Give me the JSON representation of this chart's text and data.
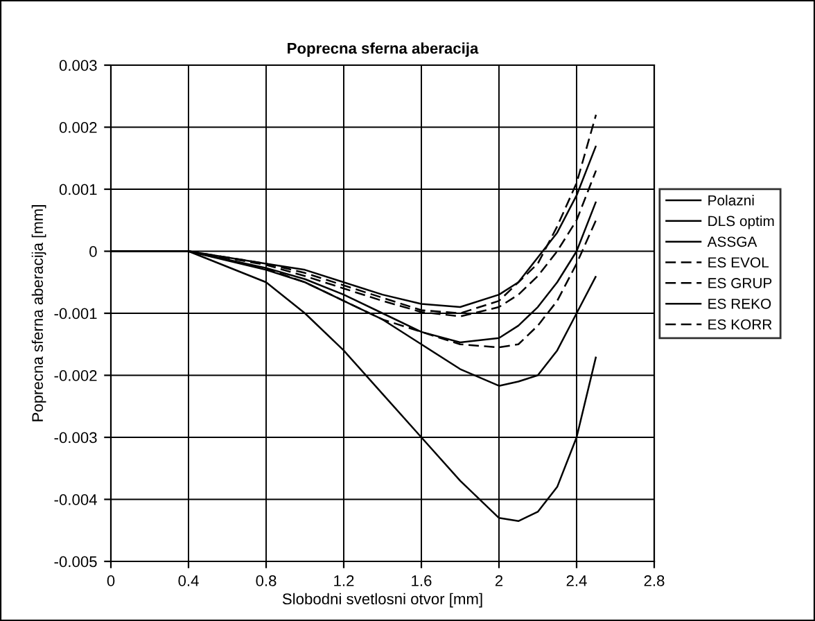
{
  "chart_data": {
    "type": "line",
    "title": "Poprecna sferna aberacija",
    "xlabel": "Slobodni svetlosni otvor [mm]",
    "ylabel": "Poprecna sferna aberacija [mm]",
    "xlim": [
      0,
      2.8
    ],
    "xticks": [
      0,
      0.4,
      0.8,
      1.2,
      1.6,
      2,
      2.4,
      2.8
    ],
    "ylim": [
      -0.005,
      0.003
    ],
    "yticks": [
      -0.005,
      -0.004,
      -0.003,
      -0.002,
      -0.001,
      0,
      0.001,
      0.002,
      0.003
    ],
    "grid": true,
    "legend": "right",
    "marker": "none",
    "x": [
      0,
      0.4,
      0.8,
      1.0,
      1.2,
      1.4,
      1.6,
      1.8,
      2.0,
      2.1,
      2.2,
      2.3,
      2.4,
      2.5
    ],
    "series": [
      {
        "name": "Polazni",
        "color": "#000000",
        "line_style": "solid",
        "values": [
          0,
          0,
          -0.0005,
          -0.001,
          -0.0016,
          -0.0023,
          -0.003,
          -0.0037,
          -0.0043,
          -0.00435,
          -0.0042,
          -0.0038,
          -0.003,
          -0.0017
        ]
      },
      {
        "name": "DLS optim",
        "color": "#000000",
        "line_style": "solid",
        "values": [
          0,
          0,
          -0.0003,
          -0.0005,
          -0.0008,
          -0.0011,
          -0.0015,
          -0.0019,
          -0.00217,
          -0.0021,
          -0.002,
          -0.0016,
          -0.001,
          -0.0004
        ]
      },
      {
        "name": "ASSGA",
        "color": "#000000",
        "line_style": "solid",
        "values": [
          0,
          0,
          -0.0002,
          -0.0003,
          -0.0005,
          -0.0007,
          -0.00085,
          -0.0009,
          -0.0007,
          -0.0005,
          -0.0001,
          0.0003,
          0.0009,
          0.0017
        ]
      },
      {
        "name": "ES EVOL",
        "color": "#000000",
        "line_style": "dashed",
        "values": [
          0,
          0,
          -0.00028,
          -0.0005,
          -0.0008,
          -0.0011,
          -0.0013,
          -0.0015,
          -0.00155,
          -0.0015,
          -0.0012,
          -0.0008,
          -0.0002,
          0.0005
        ]
      },
      {
        "name": "ES GRUP",
        "color": "#000000",
        "line_style": "dashed",
        "values": [
          0,
          0,
          -0.00022,
          -0.0004,
          -0.0006,
          -0.0008,
          -0.00098,
          -0.00105,
          -0.0009,
          -0.0007,
          -0.0004,
          0.0,
          0.0005,
          0.0013
        ]
      },
      {
        "name": "ES REKO",
        "color": "#000000",
        "line_style": "solid",
        "values": [
          0,
          0,
          -0.00027,
          -0.00045,
          -0.0007,
          -0.001,
          -0.0013,
          -0.00147,
          -0.0014,
          -0.0012,
          -0.0009,
          -0.0005,
          0.0,
          0.0008
        ]
      },
      {
        "name": "ES KORR",
        "color": "#000000",
        "line_style": "dashed",
        "values": [
          0,
          0,
          -0.0002,
          -0.00035,
          -0.00055,
          -0.00075,
          -0.00095,
          -0.001,
          -0.0008,
          -0.0005,
          -0.0002,
          0.0004,
          0.0011,
          0.0022
        ]
      }
    ]
  }
}
